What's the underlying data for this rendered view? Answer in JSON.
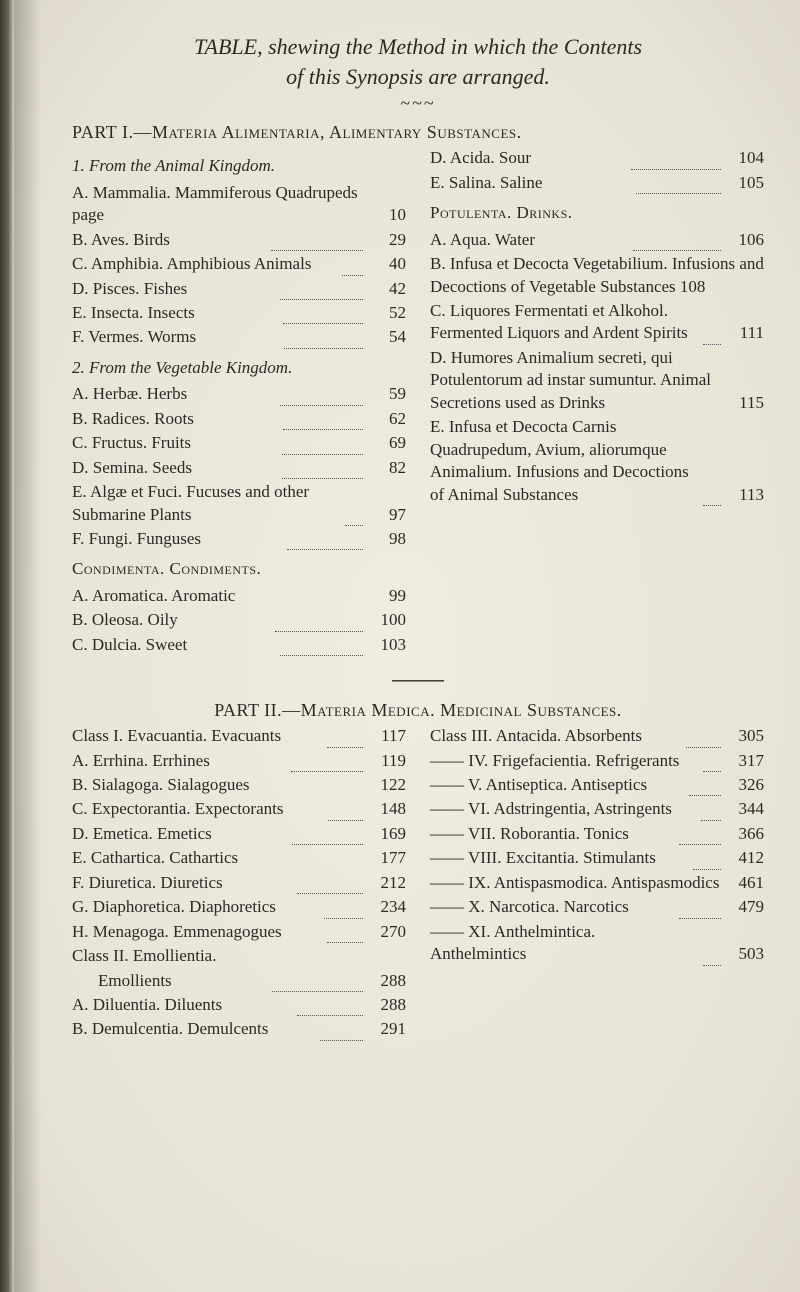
{
  "title_html": "TABLE, <span class='rest'>shewing the Method in which the Contents of this Synopsis are arranged.</span>",
  "ornament": "~~~",
  "part1_head": "PART I.—Materia Alimentaria, Alimentary Substances.",
  "p1_left": {
    "sub1": "1. From the Animal Kingdom.",
    "A": {
      "t": "A. Mammalia. Mammiferous Quadrupeds page",
      "n": "10"
    },
    "B": {
      "t": "B. Aves. Birds",
      "n": "29"
    },
    "C": {
      "t": "C. Amphibia. Amphibious Animals",
      "n": "40"
    },
    "D": {
      "t": "D. Pisces. Fishes",
      "n": "42"
    },
    "E": {
      "t": "E. Insecta. Insects",
      "n": "52"
    },
    "F": {
      "t": "F. Vermes. Worms",
      "n": "54"
    },
    "sub2": "2. From the Vegetable Kingdom.",
    "A2": {
      "t": "A. Herbæ. Herbs",
      "n": "59"
    },
    "B2": {
      "t": "B. Radices. Roots",
      "n": "62"
    },
    "C2": {
      "t": "C. Fructus. Fruits",
      "n": "69"
    },
    "D2": {
      "t": "D. Semina. Seeds",
      "n": "82"
    },
    "E2": {
      "t": "E. Algæ et Fuci. Fucuses and other Submarine Plants",
      "n": "97"
    },
    "F2": {
      "t": "F. Fungi. Funguses",
      "n": "98"
    },
    "cond": "Condimenta. Condiments.",
    "A3": {
      "t": "A. Aromatica. Aromatic",
      "n": "99"
    },
    "B3": {
      "t": "B. Oleosa. Oily",
      "n": "100"
    },
    "C3": {
      "t": "C. Dulcia. Sweet",
      "n": "103"
    }
  },
  "p1_right": {
    "D": {
      "t": "D. Acida. Sour",
      "n": "104"
    },
    "E": {
      "t": "E. Salina. Saline",
      "n": "105"
    },
    "pot": "Potulenta. Drinks.",
    "A": {
      "t": "A. Aqua. Water",
      "n": "106"
    },
    "B": "B. Infusa et Decocta Vegetabilium. Infusions and Decoctions of Vegetable Substances 108",
    "C": {
      "t": "C. Liquores Fermentati et Alkohol. Fermented Liquors and Ardent Spirits",
      "n": "111"
    },
    "Dh": {
      "t": "D. Humores Animalium secreti, qui Potulentorum ad instar sumuntur. Animal Secretions used as Drinks",
      "n": "115"
    },
    "Ei": {
      "t": "E. Infusa et Decocta Carnis Quadrupedum, Avium, aliorumque Animalium. Infusions and Decoctions of Animal Substances",
      "n": "113"
    }
  },
  "part2_head": "PART II.—Materia Medica. Medicinal Substances.",
  "p2_left": {
    "c1": {
      "t": "Class I. Evacuantia. Evacuants",
      "n": "117"
    },
    "A": {
      "t": "A. Errhina. Errhines",
      "n": "119"
    },
    "B": {
      "t": "B. Sialagoga. Sialagogues",
      "n": "122"
    },
    "C": {
      "t": "C. Expectorantia. Expectorants",
      "n": "148"
    },
    "D": {
      "t": "D. Emetica. Emetics",
      "n": "169"
    },
    "E": {
      "t": "E. Cathartica. Cathartics",
      "n": "177"
    },
    "F": {
      "t": "F. Diuretica. Diuretics",
      "n": "212"
    },
    "G": {
      "t": "G. Diaphoretica. Diaphoretics",
      "n": "234"
    },
    "H": {
      "t": "H. Menagoga. Emmenagogues",
      "n": "270"
    },
    "c2": "Class II. Emollientia.",
    "em": {
      "t": "Emollients",
      "n": "288"
    },
    "Ad": {
      "t": "A. Diluentia. Diluents",
      "n": "288"
    },
    "Bd": {
      "t": "B. Demulcentia. Demulcents",
      "n": "291"
    }
  },
  "p2_right": {
    "c3": {
      "t": "Class III. Antacida. Absorbents",
      "n": "305"
    },
    "iv": {
      "t": "—— IV. Frigefacientia. Refrigerants",
      "n": "317"
    },
    "v": {
      "t": "—— V. Antiseptica. Antiseptics",
      "n": "326"
    },
    "vi": {
      "t": "—— VI. Adstringentia, Astringents",
      "n": "344"
    },
    "vii": {
      "t": "—— VII. Roborantia. Tonics",
      "n": "366"
    },
    "viii": {
      "t": "—— VIII. Excitantia. Stimulants",
      "n": "412"
    },
    "ix": {
      "t": "—— IX. Antispasmodica. Antispasmodics",
      "n": "461"
    },
    "x": {
      "t": "—— X. Narcotica. Narcotics",
      "n": "479"
    },
    "xi": {
      "t": "—— XI. Anthelmintica. Anthelmintics",
      "n": "503"
    }
  }
}
